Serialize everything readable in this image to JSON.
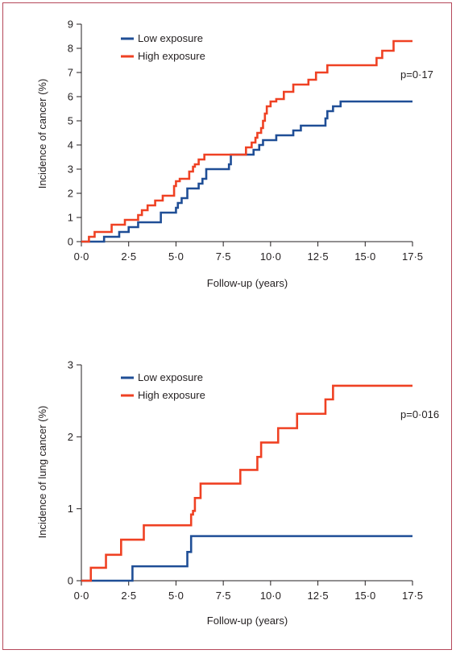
{
  "colors": {
    "low": "#1f4e96",
    "high": "#ef4123",
    "axis": "#231f20",
    "border": "#b5485a"
  },
  "chart_data": [
    {
      "type": "line",
      "step": true,
      "xlabel": "Follow-up (years)",
      "ylabel": "Incidence of cancer (%)",
      "xlim": [
        0,
        17.5
      ],
      "ylim": [
        0,
        9
      ],
      "xticks": [
        0,
        2.5,
        5,
        7.5,
        10,
        12.5,
        15,
        17.5
      ],
      "xtick_labels": [
        "0·0",
        "2·5",
        "5·0",
        "7·5",
        "10·0",
        "12·5",
        "15·0",
        "17·5"
      ],
      "yticks": [
        0,
        1,
        2,
        3,
        4,
        5,
        6,
        7,
        8,
        9
      ],
      "ytick_labels": [
        "0",
        "1",
        "2",
        "3",
        "4",
        "5",
        "6",
        "7",
        "8",
        "9"
      ],
      "annotation": "p=0·17",
      "legend": "top-left",
      "series": [
        {
          "name": "Low exposure",
          "color_key": "low",
          "x": [
            0,
            1.2,
            2.0,
            2.5,
            3.0,
            4.2,
            5.0,
            5.1,
            5.3,
            5.6,
            6.2,
            6.4,
            6.6,
            7.8,
            7.9,
            9.1,
            9.4,
            9.6,
            10.3,
            11.2,
            11.6,
            12.9,
            13.0,
            13.3,
            13.7,
            17.5
          ],
          "y": [
            0,
            0.2,
            0.4,
            0.6,
            0.8,
            1.2,
            1.4,
            1.6,
            1.8,
            2.2,
            2.4,
            2.6,
            3.0,
            3.2,
            3.6,
            3.8,
            4.0,
            4.2,
            4.4,
            4.6,
            4.8,
            5.1,
            5.4,
            5.6,
            5.8,
            5.8
          ]
        },
        {
          "name": "High exposure",
          "color_key": "high",
          "x": [
            0,
            0.4,
            0.7,
            1.6,
            2.3,
            3.0,
            3.2,
            3.5,
            3.9,
            4.3,
            4.9,
            5.0,
            5.2,
            5.7,
            5.9,
            6.0,
            6.2,
            6.5,
            8.7,
            9.0,
            9.2,
            9.3,
            9.5,
            9.6,
            9.7,
            9.8,
            10.0,
            10.3,
            10.7,
            11.2,
            12.0,
            12.4,
            13.0,
            15.6,
            15.9,
            16.5,
            17.5
          ],
          "y": [
            0,
            0.2,
            0.4,
            0.7,
            0.9,
            1.1,
            1.3,
            1.5,
            1.7,
            1.9,
            2.3,
            2.5,
            2.6,
            2.9,
            3.1,
            3.2,
            3.4,
            3.6,
            3.9,
            4.1,
            4.3,
            4.5,
            4.7,
            5.0,
            5.3,
            5.6,
            5.8,
            5.9,
            6.2,
            6.5,
            6.7,
            7.0,
            7.3,
            7.6,
            7.9,
            8.3,
            8.3
          ]
        }
      ]
    },
    {
      "type": "line",
      "step": true,
      "xlabel": "Follow-up (years)",
      "ylabel": "Incidence of lung cancer (%)",
      "xlim": [
        0,
        17.5
      ],
      "ylim": [
        0,
        3
      ],
      "xticks": [
        0,
        2.5,
        5,
        7.5,
        10,
        12.5,
        15,
        17.5
      ],
      "xtick_labels": [
        "0·0",
        "2·5",
        "5·0",
        "7·5",
        "10·0",
        "12·5",
        "15·0",
        "17·5"
      ],
      "yticks": [
        0,
        1,
        2,
        3
      ],
      "ytick_labels": [
        "0",
        "1",
        "2",
        "3"
      ],
      "annotation": "p=0·016",
      "legend": "top-left",
      "series": [
        {
          "name": "Low exposure",
          "color_key": "low",
          "x": [
            0,
            2.7,
            5.6,
            5.8,
            17.5
          ],
          "y": [
            0,
            0.2,
            0.4,
            0.62,
            0.62
          ]
        },
        {
          "name": "High exposure",
          "color_key": "high",
          "x": [
            0,
            0.5,
            1.3,
            2.1,
            3.3,
            5.8,
            5.9,
            6.0,
            6.3,
            8.4,
            9.3,
            9.5,
            10.4,
            11.4,
            12.9,
            13.3,
            17.5
          ],
          "y": [
            0,
            0.18,
            0.36,
            0.57,
            0.77,
            0.92,
            0.97,
            1.15,
            1.35,
            1.54,
            1.72,
            1.92,
            2.12,
            2.32,
            2.52,
            2.71,
            2.71
          ]
        }
      ]
    }
  ]
}
